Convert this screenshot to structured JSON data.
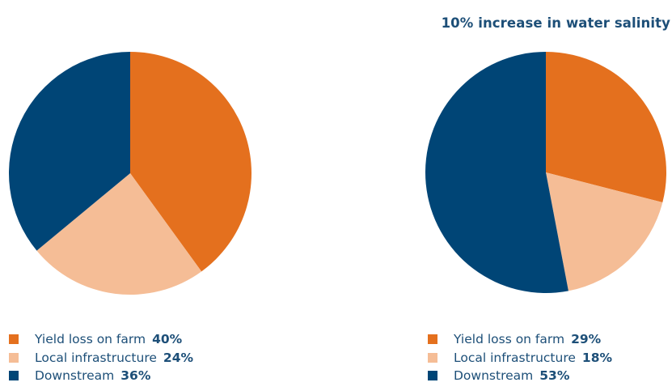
{
  "chart_data": [
    {
      "type": "pie",
      "title": "",
      "slices": [
        {
          "label": "Yield loss on farm",
          "value": 40,
          "value_text": "40%",
          "color": "#e4701e"
        },
        {
          "label": "Local infrastructure",
          "value": 24,
          "value_text": "24%",
          "color": "#f5bd96"
        },
        {
          "label": "Downstream",
          "value": 36,
          "value_text": "36%",
          "color": "#004576"
        }
      ],
      "start_angle_deg": 0,
      "direction": "clockwise",
      "legend_position": "bottom-left"
    },
    {
      "type": "pie",
      "title": "10% increase in water salinity",
      "slices": [
        {
          "label": "Yield loss on farm",
          "value": 29,
          "value_text": "29%",
          "color": "#e4701e"
        },
        {
          "label": "Local infrastructure",
          "value": 18,
          "value_text": "18%",
          "color": "#f5bd96"
        },
        {
          "label": "Downstream",
          "value": 53,
          "value_text": "53%",
          "color": "#004576"
        }
      ],
      "start_angle_deg": 0,
      "direction": "clockwise",
      "legend_position": "bottom-left"
    }
  ]
}
